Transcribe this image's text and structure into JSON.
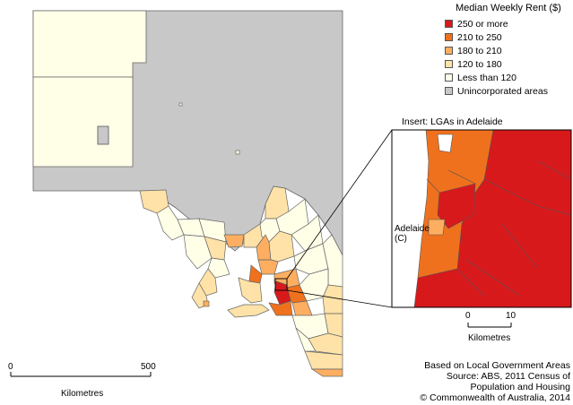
{
  "legend": {
    "title": "Median Weekly Rent ($)",
    "items": [
      {
        "label": "250 or more",
        "color": "#d7191c"
      },
      {
        "label": "210 to 250",
        "color": "#f0711d"
      },
      {
        "label": "180 to 210",
        "color": "#fdae61"
      },
      {
        "label": "120 to 180",
        "color": "#fee2a8"
      },
      {
        "label": "Less than 120",
        "color": "#ffffe8"
      },
      {
        "label": "Unincorporated areas",
        "color": "#c8c8c8"
      }
    ]
  },
  "insert": {
    "title": "Insert: LGAs in Adelaide",
    "place_label_1": "Adelaide",
    "place_label_2": "(C)",
    "scale": {
      "tick_start": "0",
      "tick_end": "10",
      "unit": "Kilometres"
    }
  },
  "main_scale": {
    "tick_start": "0",
    "tick_end": "500",
    "unit": "Kilometres"
  },
  "source": {
    "line1": "Based on Local Government Areas",
    "line2": "Source: ABS, 2011 Census of",
    "line3": "Population and Housing",
    "line4": "© Commonwealth of Australia, 2014"
  }
}
